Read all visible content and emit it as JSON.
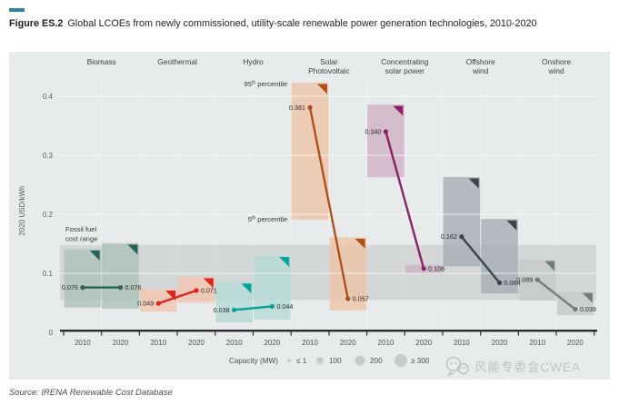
{
  "figure": {
    "label": "Figure ES.2",
    "title": "Global LCOEs from newly commissioned, utility-scale renewable power generation technologies, 2010-2020",
    "accent_color": "#2e81a8"
  },
  "source": "Source: IRENA Renewable Cost Database",
  "watermark": {
    "icon": "wechat-icon",
    "text": "风能专委会CWEA"
  },
  "chart_data": {
    "type": "scatter",
    "subtype": "dot-line-with-percentile-bands",
    "title": "",
    "xlabel": "",
    "ylabel": "2020 USD/kWh",
    "ylim": [
      0,
      0.44
    ],
    "yticks": [
      "0",
      "0.1",
      "0.2",
      "0.3",
      "0.4"
    ],
    "ytick_values": [
      0,
      0.1,
      0.2,
      0.3,
      0.4
    ],
    "years": [
      "2010",
      "2020"
    ],
    "grid": "horizontal-white",
    "panel_color": "#e8ebec",
    "fossil_fuel_band": {
      "label_lines": [
        "Fossil fuel",
        "cost range"
      ],
      "range": [
        0.055,
        0.148
      ],
      "color": "#d2d5d6"
    },
    "percentile_top": {
      "num": "95",
      "sup": "th",
      "label": " percentile"
    },
    "percentile_bottom": {
      "num": "5",
      "sup": "th",
      "label": " percentile"
    },
    "categories": [
      {
        "name": "Biomass",
        "name_lines": [
          "Biomass"
        ],
        "line_color": "#26655a",
        "band_color": "#aec2b8",
        "points": [
          {
            "year": "2010",
            "value": 0.076,
            "band": [
              0.042,
              0.141
            ]
          },
          {
            "year": "2020",
            "value": 0.076,
            "band": [
              0.04,
              0.151
            ]
          }
        ]
      },
      {
        "name": "Geothermal",
        "name_lines": [
          "Geothermal"
        ],
        "line_color": "#e0241a",
        "band_color": "#f3c6b1",
        "points": [
          {
            "year": "2010",
            "value": 0.049,
            "band": [
              0.035,
              0.073
            ]
          },
          {
            "year": "2020",
            "value": 0.071,
            "band": [
              0.05,
              0.094
            ]
          }
        ]
      },
      {
        "name": "Hydro",
        "name_lines": [
          "Hydro"
        ],
        "line_color": "#00a59c",
        "band_color": "#b6dad4",
        "points": [
          {
            "year": "2010",
            "value": 0.038,
            "band": [
              0.017,
              0.085
            ]
          },
          {
            "year": "2020",
            "value": 0.044,
            "band": [
              0.022,
              0.13
            ]
          }
        ]
      },
      {
        "name": "Solar Photovoltaic",
        "name_lines": [
          "Solar",
          "Photovoltaic"
        ],
        "line_color": "#b05018",
        "band_color": "#eec5aa",
        "points": [
          {
            "year": "2010",
            "value": 0.381,
            "band": [
              0.191,
              0.423
            ]
          },
          {
            "year": "2020",
            "value": 0.057,
            "band": [
              0.037,
              0.161
            ]
          }
        ]
      },
      {
        "name": "Concentrating solar power",
        "name_lines": [
          "Concentrating",
          "solar power"
        ],
        "line_color": "#8f2063",
        "band_color": "#cfb2c5",
        "points": [
          {
            "year": "2010",
            "value": 0.34,
            "band": [
              0.263,
              0.386
            ]
          },
          {
            "year": "2020",
            "value": 0.108,
            "band": [
              0.1,
              0.114
            ]
          }
        ]
      },
      {
        "name": "Offshore wind",
        "name_lines": [
          "Offshore",
          "wind"
        ],
        "line_color": "#39444b",
        "band_color": "#a8afb4",
        "points": [
          {
            "year": "2010",
            "value": 0.162,
            "band": [
              0.112,
              0.263
            ]
          },
          {
            "year": "2020",
            "value": 0.084,
            "band": [
              0.066,
              0.192
            ]
          }
        ]
      },
      {
        "name": "Onshore wind",
        "name_lines": [
          "Onshore",
          "wind"
        ],
        "line_color": "#6e7d75",
        "band_color": "#c5ccc7",
        "points": [
          {
            "year": "2010",
            "value": 0.089,
            "band": [
              0.054,
              0.123
            ]
          },
          {
            "year": "2020",
            "value": 0.039,
            "band": [
              0.029,
              0.069
            ]
          }
        ]
      }
    ],
    "capacity_legend": {
      "title": "Capacity (MW)",
      "items": [
        {
          "label": "≤ 1",
          "radius": 2.0
        },
        {
          "label": "100",
          "radius": 4.0
        },
        {
          "label": "200",
          "radius": 5.5
        },
        {
          "label": "≥ 300",
          "radius": 7.0
        }
      ]
    }
  }
}
